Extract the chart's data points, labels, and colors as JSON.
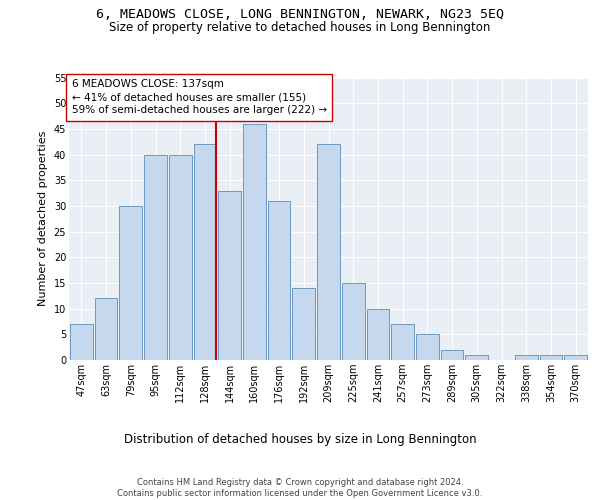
{
  "title": "6, MEADOWS CLOSE, LONG BENNINGTON, NEWARK, NG23 5EQ",
  "subtitle": "Size of property relative to detached houses in Long Bennington",
  "xlabel": "Distribution of detached houses by size in Long Bennington",
  "ylabel": "Number of detached properties",
  "categories": [
    "47sqm",
    "63sqm",
    "79sqm",
    "95sqm",
    "112sqm",
    "128sqm",
    "144sqm",
    "160sqm",
    "176sqm",
    "192sqm",
    "209sqm",
    "225sqm",
    "241sqm",
    "257sqm",
    "273sqm",
    "289sqm",
    "305sqm",
    "322sqm",
    "338sqm",
    "354sqm",
    "370sqm"
  ],
  "values": [
    7,
    12,
    30,
    40,
    40,
    42,
    33,
    46,
    31,
    14,
    42,
    15,
    10,
    7,
    5,
    2,
    1,
    0,
    1,
    1,
    1
  ],
  "bar_color": "#c5d8ed",
  "bar_edge_color": "#5b8db8",
  "vline_color": "#cc0000",
  "annotation_text": "6 MEADOWS CLOSE: 137sqm\n← 41% of detached houses are smaller (155)\n59% of semi-detached houses are larger (222) →",
  "annotation_box_color": "#ffffff",
  "annotation_box_edge_color": "#cc0000",
  "ylim": [
    0,
    55
  ],
  "yticks": [
    0,
    5,
    10,
    15,
    20,
    25,
    30,
    35,
    40,
    45,
    50,
    55
  ],
  "bg_color": "#eaeef5",
  "grid_color": "#ffffff",
  "footer_text": "Contains HM Land Registry data © Crown copyright and database right 2024.\nContains public sector information licensed under the Open Government Licence v3.0.",
  "title_fontsize": 9.5,
  "subtitle_fontsize": 8.5,
  "xlabel_fontsize": 8.5,
  "ylabel_fontsize": 8,
  "tick_fontsize": 7,
  "annotation_fontsize": 7.5,
  "footer_fontsize": 6
}
